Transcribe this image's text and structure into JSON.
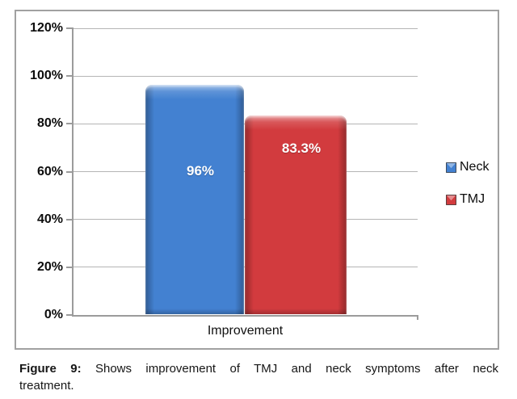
{
  "chart_data": {
    "type": "bar",
    "title": "",
    "categories": [
      "Improvement"
    ],
    "series": [
      {
        "name": "Neck",
        "value": 96,
        "label": "96%",
        "color": "#4381d1"
      },
      {
        "name": "TMJ",
        "value": 83.3,
        "label": "83.3%",
        "color": "#d23b3e"
      }
    ],
    "xlabel": "Improvement",
    "ylabel": "",
    "ylim": [
      0,
      120
    ],
    "yticks": [
      {
        "value": 0,
        "label": "0%"
      },
      {
        "value": 20,
        "label": "20%"
      },
      {
        "value": 40,
        "label": "40%"
      },
      {
        "value": 60,
        "label": "60%"
      },
      {
        "value": 80,
        "label": "80%"
      },
      {
        "value": 100,
        "label": "100%"
      },
      {
        "value": 120,
        "label": "120%"
      }
    ],
    "grid": true,
    "legend_position": "right",
    "legend": [
      "Neck",
      "TMJ"
    ]
  },
  "caption": {
    "label": "Figure 9:",
    "line1": "Shows improvement of TMJ and neck symptoms after neck",
    "line2": "treatment."
  },
  "colors": {
    "neck_bar": "#4381d1",
    "tmj_bar": "#d23b3e",
    "bar_label_text": "#ffffff",
    "axis": "#9b9b9b",
    "gridline": "#b5b5b5",
    "frame_border": "#a1a1a1"
  }
}
